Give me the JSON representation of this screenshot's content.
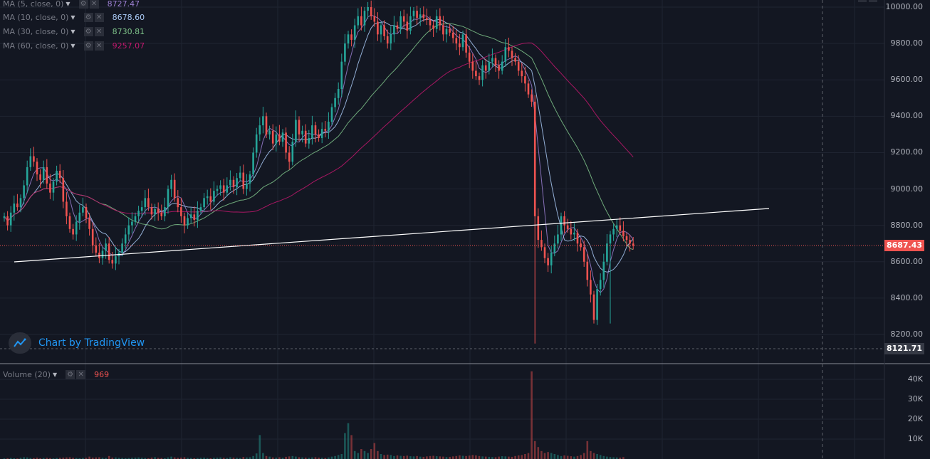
{
  "indicators": [
    {
      "name": "MA (5, close, 0)",
      "value": "8727.47",
      "color": "#9b7fd1"
    },
    {
      "name": "MA (10, close, 0)",
      "value": "8678.60",
      "color": "#a9c9f5"
    },
    {
      "name": "MA (30, close, 0)",
      "value": "8730.81",
      "color": "#7fc38a"
    },
    {
      "name": "MA (60, close, 0)",
      "value": "9257.07",
      "color": "#c2186d"
    }
  ],
  "volume_indicator": {
    "name": "Volume (20)",
    "value": "969",
    "color": "#ef5350"
  },
  "watermark": "Chart by TradingView",
  "price_axis": [
    "10000.00",
    "9800.00",
    "9600.00",
    "9400.00",
    "9200.00",
    "9000.00",
    "8800.00",
    "8600.00",
    "8400.00",
    "8200.00"
  ],
  "volume_axis": [
    "40K",
    "30K",
    "20K",
    "10K"
  ],
  "current_price": {
    "label": "8687.43",
    "color": "#ef5350"
  },
  "low_price": {
    "label": "8121.71",
    "color": "#363a45"
  },
  "colors": {
    "background": "#131722",
    "up": "#26a69a",
    "down": "#ef5350",
    "grid": "#1f2431",
    "trendline": "#ffffff"
  },
  "chart_data": {
    "type": "candlestick",
    "ylim": [
      8100,
      10020
    ],
    "volume_ylim": [
      0,
      45000
    ],
    "closes": [
      8850,
      8800,
      8870,
      8920,
      8900,
      8950,
      9020,
      9120,
      9180,
      9150,
      9080,
      9050,
      9120,
      9030,
      8980,
      9040,
      9100,
      9060,
      8930,
      8850,
      8780,
      8750,
      8820,
      8870,
      8900,
      8840,
      8780,
      8690,
      8650,
      8620,
      8660,
      8700,
      8610,
      8590,
      8630,
      8650,
      8700,
      8750,
      8800,
      8820,
      8850,
      8880,
      8900,
      8950,
      8900,
      8860,
      8890,
      8870,
      8850,
      8900,
      9000,
      9050,
      8950,
      8900,
      8850,
      8800,
      8840,
      8860,
      8830,
      8880,
      8900,
      8950,
      8960,
      8930,
      8990,
      9000,
      9020,
      8980,
      9020,
      9050,
      9010,
      9060,
      9090,
      9000,
      9030,
      9080,
      9200,
      9300,
      9350,
      9400,
      9300,
      9320,
      9250,
      9300,
      9260,
      9310,
      9200,
      9150,
      9260,
      9380,
      9300,
      9320,
      9250,
      9280,
      9350,
      9300,
      9280,
      9330,
      9320,
      9370,
      9450,
      9500,
      9550,
      9700,
      9800,
      9850,
      9820,
      9900,
      9950,
      9900,
      9980,
      10000,
      9950,
      9920,
      9850,
      9900,
      9840,
      9800,
      9850,
      9900,
      9880,
      9950,
      9920,
      9870,
      9950,
      9980,
      9940,
      9960,
      9940,
      9930,
      9900,
      9880,
      9950,
      9900,
      9850,
      9880,
      9860,
      9830,
      9800,
      9780,
      9850,
      9750,
      9700,
      9650,
      9620,
      9600,
      9680,
      9650,
      9700,
      9720,
      9680,
      9650,
      9700,
      9780,
      9760,
      9720,
      9700,
      9650,
      9620,
      9580,
      9520,
      9480,
      8850,
      8720,
      8680,
      8620,
      8580,
      8650,
      8700,
      8750,
      8850,
      8800,
      8780,
      8750,
      8760,
      8700,
      8680,
      8600,
      8500,
      8420,
      8280,
      8450,
      8500,
      8600,
      8700,
      8750,
      8780,
      8800,
      8770,
      8740,
      8720,
      8700,
      8687
    ],
    "volumes": [
      300,
      400,
      500,
      350,
      300,
      600,
      900,
      800,
      500,
      450,
      700,
      400,
      500,
      600,
      450,
      300,
      500,
      600,
      700,
      800,
      900,
      600,
      500,
      400,
      500,
      600,
      1200,
      700,
      800,
      900,
      600,
      500,
      1500,
      700,
      800,
      600,
      500,
      400,
      500,
      600,
      700,
      800,
      600,
      500,
      400,
      700,
      900,
      600,
      500,
      400,
      800,
      1200,
      800,
      600,
      700,
      900,
      600,
      500,
      400,
      500,
      600,
      700,
      500,
      400,
      600,
      700,
      800,
      600,
      500,
      900,
      700,
      600,
      500,
      1000,
      800,
      900,
      1500,
      2800,
      12000,
      3000,
      1500,
      1200,
      800,
      700,
      900,
      600,
      1100,
      1300,
      1500,
      1200,
      900,
      800,
      700,
      600,
      800,
      900,
      700,
      600,
      500,
      800,
      1200,
      1500,
      2000,
      2500,
      13000,
      18000,
      12000,
      4000,
      3000,
      5000,
      4000,
      3000,
      5000,
      8000,
      4000,
      2500,
      2000,
      2200,
      2000,
      1500,
      1800,
      1600,
      1500,
      1700,
      1400,
      1300,
      1500,
      1200,
      1100,
      1300,
      1500,
      1600,
      1400,
      1300,
      1200,
      1000,
      1100,
      1300,
      1500,
      1800,
      1600,
      1500,
      1700,
      2000,
      1800,
      1500,
      1300,
      1200,
      1100,
      1000,
      900,
      1200,
      1400,
      1300,
      1200,
      1100,
      1500,
      1800,
      2000,
      2500,
      3000,
      44000,
      9000,
      6000,
      4000,
      3000,
      3500,
      3000,
      2500,
      2000,
      1500,
      1800,
      1600,
      1400,
      1200,
      1500,
      2000,
      3000,
      9000,
      4000,
      3000,
      2500,
      2000,
      1500,
      1200,
      1000,
      900,
      800,
      700,
      969
    ]
  }
}
